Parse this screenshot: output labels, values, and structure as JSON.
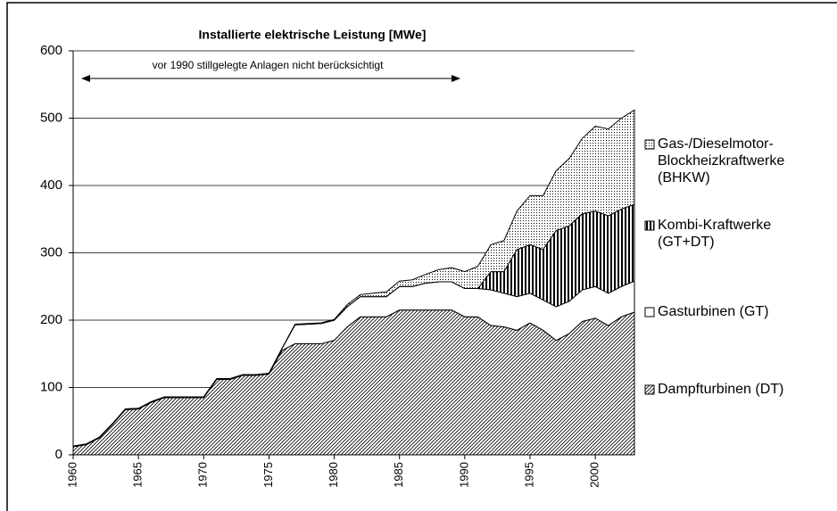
{
  "chart_data": {
    "type": "stacked_area",
    "title": "Installierte elektrische Leistung  [MWe]",
    "annotation": "vor 1990 stillgelegte Anlagen nicht berücksichtigt",
    "x": [
      1960,
      1961,
      1962,
      1963,
      1964,
      1965,
      1966,
      1967,
      1968,
      1969,
      1970,
      1971,
      1972,
      1973,
      1974,
      1975,
      1976,
      1977,
      1978,
      1979,
      1980,
      1981,
      1982,
      1983,
      1984,
      1985,
      1986,
      1987,
      1988,
      1989,
      1990,
      1991,
      1992,
      1993,
      1994,
      1995,
      1996,
      1997,
      1998,
      1999,
      2000,
      2001,
      2002,
      2003
    ],
    "xlim": [
      1960,
      2003
    ],
    "xticks": [
      1960,
      1965,
      1970,
      1975,
      1980,
      1985,
      1990,
      1995,
      2000
    ],
    "ylim": [
      0,
      600
    ],
    "yticks": [
      0,
      100,
      200,
      300,
      400,
      500,
      600
    ],
    "grid": true,
    "legend": "right",
    "series": [
      {
        "name": "Dampfturbinen (DT)",
        "pattern": "hatch",
        "color": "#000000",
        "values": [
          12,
          15,
          25,
          45,
          67,
          68,
          78,
          85,
          85,
          85,
          85,
          112,
          112,
          118,
          118,
          120,
          155,
          165,
          165,
          165,
          170,
          190,
          205,
          205,
          205,
          215,
          215,
          215,
          215,
          215,
          205,
          205,
          192,
          190,
          185,
          196,
          185,
          170,
          180,
          198,
          203,
          192,
          205,
          212
        ]
      },
      {
        "name": "Gasturbinen (GT)",
        "pattern": "none",
        "color": "#ffffff",
        "values": [
          1,
          1,
          1,
          1,
          1,
          1,
          1,
          1,
          1,
          1,
          1,
          1,
          1,
          1,
          1,
          1,
          3,
          28,
          29,
          30,
          30,
          30,
          30,
          30,
          30,
          35,
          35,
          40,
          42,
          42,
          42,
          42,
          53,
          50,
          50,
          44,
          45,
          50,
          48,
          47,
          47,
          48,
          45,
          46
        ]
      },
      {
        "name": "Kombi-Kraftwerke (GT+DT)",
        "pattern": "stripes",
        "color": "#000000",
        "values": [
          0,
          0,
          0,
          0,
          0,
          0,
          0,
          0,
          0,
          0,
          0,
          0,
          0,
          0,
          0,
          0,
          0,
          0,
          0,
          0,
          0,
          0,
          0,
          0,
          0,
          0,
          0,
          0,
          0,
          0,
          0,
          0,
          27,
          32,
          70,
          72,
          75,
          113,
          112,
          113,
          112,
          115,
          115,
          114
        ]
      },
      {
        "name": "Gas-/Dieselmotor-Blockheizkraftwerke (BHKW)",
        "pattern": "dots",
        "color": "#000000",
        "values": [
          0,
          0,
          0,
          0,
          0,
          0,
          0,
          0,
          0,
          0,
          0,
          0,
          0,
          0,
          0,
          0,
          0,
          1,
          1,
          1,
          1,
          3,
          3,
          5,
          7,
          8,
          10,
          13,
          18,
          21,
          25,
          33,
          40,
          46,
          57,
          73,
          80,
          89,
          100,
          112,
          126,
          129,
          135,
          140
        ]
      }
    ]
  }
}
